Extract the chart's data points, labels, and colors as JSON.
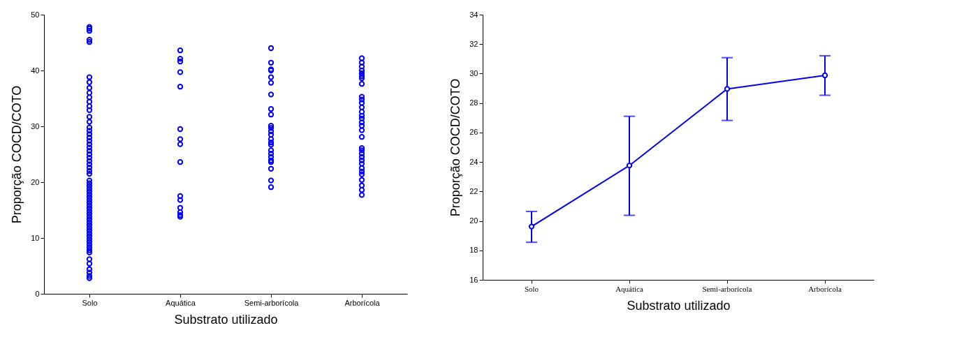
{
  "chart_data": [
    {
      "type": "scatter",
      "xlabel": "Substrato utilizado",
      "ylabel": "Proporção COCD/COTO",
      "categories": [
        "Solo",
        "Aquática",
        "Semi-arborícola",
        "Arborícola"
      ],
      "ylim": [
        0,
        50
      ],
      "yticks": [
        0,
        10,
        20,
        30,
        40,
        50
      ],
      "grid": false,
      "marker": "circle",
      "series": [
        {
          "color": "#0000ff",
          "x": [
            "Solo",
            "Solo",
            "Solo",
            "Solo",
            "Solo",
            "Solo",
            "Solo",
            "Solo",
            "Solo",
            "Solo",
            "Solo",
            "Solo",
            "Solo",
            "Solo",
            "Solo",
            "Solo",
            "Solo",
            "Solo",
            "Solo",
            "Solo",
            "Solo",
            "Solo",
            "Solo",
            "Solo",
            "Solo",
            "Solo",
            "Solo",
            "Solo",
            "Solo",
            "Solo",
            "Solo",
            "Solo",
            "Solo",
            "Solo",
            "Solo",
            "Solo",
            "Solo",
            "Solo",
            "Solo",
            "Solo",
            "Solo",
            "Solo",
            "Solo",
            "Solo",
            "Solo",
            "Solo",
            "Solo",
            "Solo",
            "Solo",
            "Solo",
            "Solo",
            "Solo",
            "Solo",
            "Solo",
            "Solo",
            "Solo",
            "Solo",
            "Solo",
            "Solo",
            "Solo",
            "Solo",
            "Solo",
            "Solo"
          ],
          "values": [
            47.8,
            47.5,
            47.1,
            45.5,
            45.1,
            38.8,
            37.9,
            36.9,
            36.0,
            35.2,
            34.4,
            33.6,
            32.9,
            31.7,
            30.8,
            29.8,
            29.2,
            28.6,
            28.0,
            27.4,
            26.8,
            26.2,
            25.6,
            25.0,
            24.4,
            23.8,
            23.2,
            22.6,
            22.0,
            21.5,
            20.3,
            19.8,
            19.3,
            18.8,
            18.3,
            17.8,
            17.3,
            16.8,
            16.3,
            15.8,
            15.3,
            14.8,
            14.3,
            13.8,
            13.3,
            12.8,
            12.3,
            11.8,
            11.3,
            10.8,
            10.3,
            9.8,
            9.3,
            8.8,
            8.3,
            7.8,
            7.4,
            6.2,
            5.4,
            4.4,
            3.8,
            3.2,
            2.8
          ]
        },
        {
          "color": "#0000ff",
          "x": [
            "Aquática",
            "Aquática",
            "Aquática",
            "Aquática",
            "Aquática",
            "Aquática",
            "Aquática",
            "Aquática",
            "Aquática",
            "Aquática",
            "Aquática",
            "Aquática",
            "Aquática",
            "Aquática",
            "Aquática"
          ],
          "values": [
            43.6,
            42.1,
            41.6,
            39.7,
            37.1,
            29.5,
            27.7,
            26.8,
            23.6,
            17.5,
            16.8,
            15.4,
            14.6,
            14.1,
            13.8
          ]
        },
        {
          "color": "#0000ff",
          "x": [
            "Semi-arborícola",
            "Semi-arborícola",
            "Semi-arborícola",
            "Semi-arborícola",
            "Semi-arborícola",
            "Semi-arborícola",
            "Semi-arborícola",
            "Semi-arborícola",
            "Semi-arborícola",
            "Semi-arborícola",
            "Semi-arborícola",
            "Semi-arborícola",
            "Semi-arborícola",
            "Semi-arborícola",
            "Semi-arborícola",
            "Semi-arborícola",
            "Semi-arborícola",
            "Semi-arborícola",
            "Semi-arborícola",
            "Semi-arborícola",
            "Semi-arborícola",
            "Semi-arborícola",
            "Semi-arborícola",
            "Semi-arborícola"
          ],
          "values": [
            44.0,
            41.4,
            40.2,
            40.0,
            38.8,
            37.8,
            35.7,
            33.1,
            32.1,
            30.1,
            29.7,
            29.1,
            28.5,
            27.7,
            27.1,
            26.7,
            25.7,
            25.1,
            24.5,
            23.9,
            23.6,
            22.4,
            20.3,
            19.1
          ]
        },
        {
          "color": "#0000ff",
          "x": [
            "Arborícola",
            "Arborícola",
            "Arborícola",
            "Arborícola",
            "Arborícola",
            "Arborícola",
            "Arborícola",
            "Arborícola",
            "Arborícola",
            "Arborícola",
            "Arborícola",
            "Arborícola",
            "Arborícola",
            "Arborícola",
            "Arborícola",
            "Arborícola",
            "Arborícola",
            "Arborícola",
            "Arborícola",
            "Arborícola",
            "Arborícola",
            "Arborícola",
            "Arborícola",
            "Arborícola",
            "Arborícola",
            "Arborícola",
            "Arborícola",
            "Arborícola",
            "Arborícola",
            "Arborícola",
            "Arborícola",
            "Arborícola"
          ],
          "values": [
            42.2,
            41.4,
            40.7,
            40.0,
            39.5,
            39.0,
            38.6,
            37.6,
            35.3,
            34.8,
            34.2,
            33.4,
            32.6,
            31.9,
            31.4,
            30.7,
            30.1,
            29.3,
            28.1,
            26.1,
            25.7,
            25.1,
            24.5,
            23.9,
            23.3,
            22.5,
            21.9,
            21.4,
            20.4,
            19.4,
            18.6,
            17.7
          ]
        }
      ]
    },
    {
      "type": "line",
      "xlabel": "Substrato utilizado",
      "ylabel": "Proporção COCD/COTO",
      "categories": [
        "Solo",
        "Aquática",
        "Semi-arborícola",
        "Arborícola"
      ],
      "ylim": [
        16,
        34
      ],
      "yticks": [
        16,
        18,
        20,
        22,
        24,
        26,
        28,
        30,
        32,
        34
      ],
      "grid": false,
      "marker": "circle",
      "line_style": "solid",
      "series": [
        {
          "color": "#0000ff",
          "values": [
            19.62,
            23.76,
            28.96,
            29.88
          ],
          "errors": [
            [
              18.55,
              20.64
            ],
            [
              20.38,
              27.1
            ],
            [
              26.82,
              31.08
            ],
            [
              28.53,
              31.21
            ]
          ]
        }
      ]
    }
  ]
}
